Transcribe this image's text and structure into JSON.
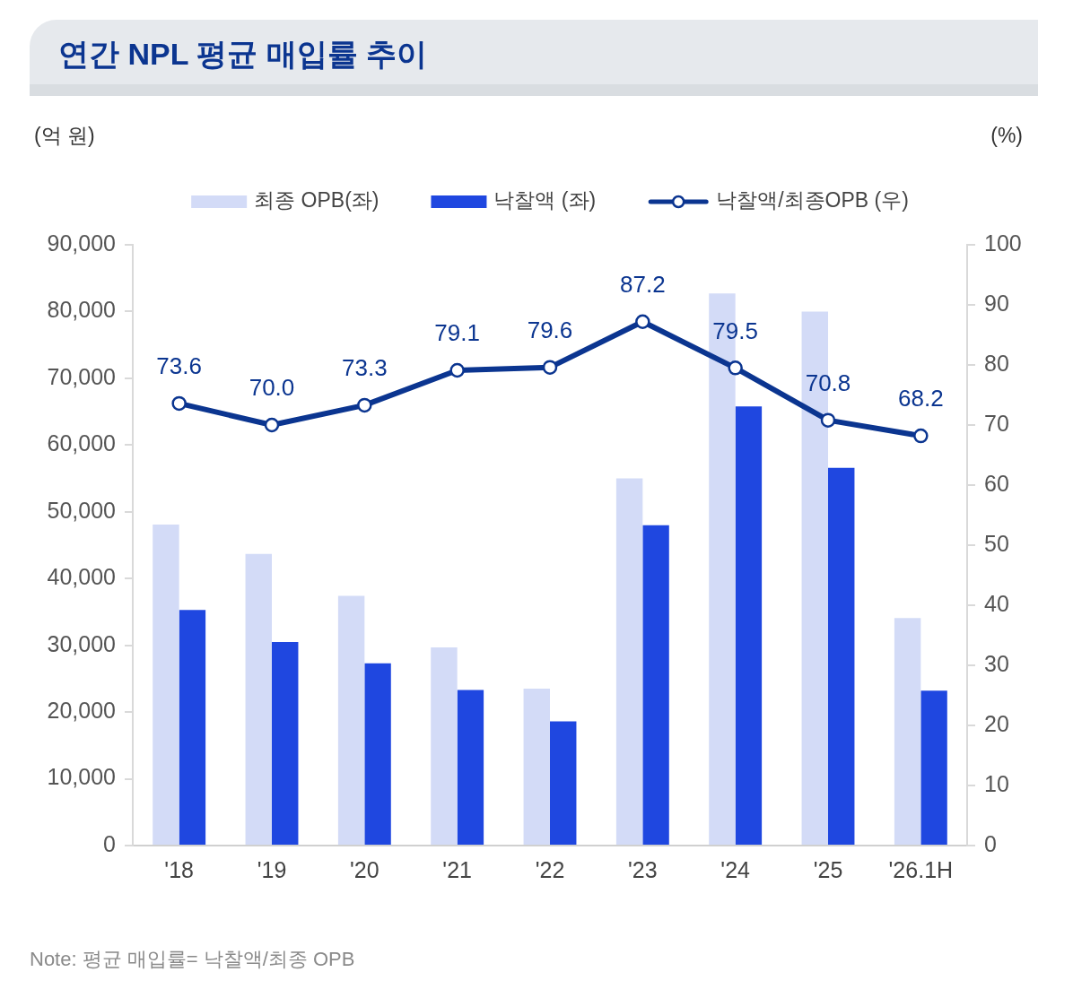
{
  "chart_data": {
    "type": "bar",
    "title": "연간 NPL 평균 매입률 추이",
    "ylabel": "(억 원)",
    "y2label": "(%)",
    "categories": [
      "'18",
      "'19",
      "'20",
      "'21",
      "'22",
      "'23",
      "'24",
      "'25",
      "'26.1H"
    ],
    "series": [
      {
        "name": "최종 OPB(좌)",
        "color": "#d3dbf7",
        "values": [
          48100,
          43700,
          37400,
          29700,
          23500,
          55000,
          82700,
          80000,
          34100
        ]
      },
      {
        "name": "낙찰액 (좌)",
        "color": "#1f47e0",
        "values": [
          35300,
          30500,
          27300,
          23300,
          18600,
          48000,
          65800,
          56600,
          23200
        ]
      },
      {
        "name": "낙찰액/최종OPB (우)",
        "type": "line",
        "axis": "y2",
        "color": "#0b3590",
        "marker": "circle",
        "values": [
          73.6,
          70.0,
          73.3,
          79.1,
          79.6,
          87.2,
          79.5,
          70.8,
          68.2
        ],
        "value_labels": [
          "73.6",
          "70.0",
          "73.3",
          "79.1",
          "79.6",
          "87.2",
          "79.5",
          "70.8",
          "68.2"
        ]
      }
    ],
    "ylim": [
      0,
      90000
    ],
    "yticks": [
      0,
      {
        "value": 10000,
        "label": "10,000"
      },
      {
        "value": 20000,
        "label": "20,000"
      },
      {
        "value": 30000,
        "label": "30,000"
      },
      {
        "value": 40000,
        "label": "40,000"
      },
      {
        "value": 50000,
        "label": "50,000"
      },
      {
        "value": 60000,
        "label": "60,000"
      },
      {
        "value": 70000,
        "label": "70,000"
      },
      {
        "value": 80000,
        "label": "80,000"
      },
      {
        "value": 90000,
        "label": "90,000"
      }
    ],
    "y2lim": [
      0,
      100
    ],
    "y2ticks": [
      0,
      10,
      20,
      30,
      40,
      50,
      60,
      70,
      80,
      90,
      100
    ],
    "grid": false,
    "legend": "top",
    "annotations": [
      "Note: 평균 매입률= 낙찰액/최종 OPB"
    ]
  }
}
